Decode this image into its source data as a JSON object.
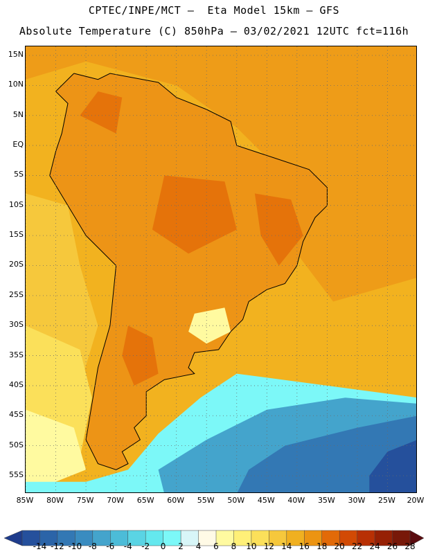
{
  "title": {
    "line1": "CPTEC/INPE/MCT –  Eta Model 15km – GFS",
    "line2": "Absolute Temperature (C) 850hPa – 03/02/2021 12UTC fct=116h"
  },
  "axes": {
    "lat_labels": [
      "15N",
      "10N",
      "5N",
      "EQ",
      "5S",
      "10S",
      "15S",
      "20S",
      "25S",
      "30S",
      "35S",
      "40S",
      "45S",
      "50S",
      "55S"
    ],
    "lat_values": [
      15,
      10,
      5,
      0,
      -5,
      -10,
      -15,
      -20,
      -25,
      -30,
      -35,
      -40,
      -45,
      -50,
      -55
    ],
    "lon_labels": [
      "85W",
      "80W",
      "75W",
      "70W",
      "65W",
      "60W",
      "55W",
      "50W",
      "45W",
      "40W",
      "35W",
      "30W",
      "25W",
      "20W"
    ],
    "lon_values": [
      -85,
      -80,
      -75,
      -70,
      -65,
      -60,
      -55,
      -50,
      -45,
      -40,
      -35,
      -30,
      -25,
      -20
    ],
    "lat_range": [
      -58,
      16.5
    ],
    "lon_range": [
      -85,
      -20
    ]
  },
  "colorbar": {
    "labels": [
      "-14",
      "-12",
      "-10",
      "-8",
      "-6",
      "-4",
      "-2",
      "0",
      "2",
      "4",
      "6",
      "8",
      "10",
      "12",
      "14",
      "16",
      "18",
      "20",
      "22",
      "24",
      "26",
      "28"
    ],
    "colors": [
      "#1e3c8c",
      "#25509c",
      "#2b64a8",
      "#3378b4",
      "#3a8cc0",
      "#44a4cc",
      "#4cbcd8",
      "#5ad4e4",
      "#64e8ee",
      "#7cf8f8",
      "#d8f6f8",
      "#fffae6",
      "#fffaa0",
      "#fff078",
      "#fbe05a",
      "#f6c83c",
      "#f0b020",
      "#ec9412",
      "#e26a08",
      "#d24a04",
      "#b83004",
      "#962004",
      "#781808",
      "#5a0c10"
    ]
  },
  "field": {
    "ocean_north": "#f2b21f",
    "land_warm": "#ed9416",
    "land_hot": "#e26a08",
    "cool_1": "#f6c83c",
    "cool_2": "#fbe05a",
    "cool_3": "#fffaa0",
    "cold_1": "#7cf8f8",
    "cold_2": "#44a4cc",
    "cold_3": "#3378b4",
    "cold_4": "#25509c"
  }
}
